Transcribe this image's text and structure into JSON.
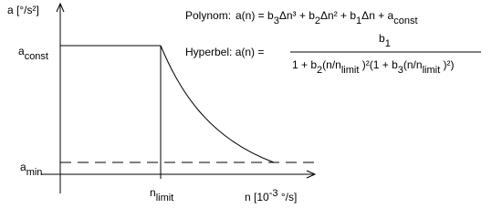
{
  "y_axis_label": "a [°/s²]",
  "x_axis_label": [
    {
      "text": "n [10"
    },
    {
      "sup": "-3"
    },
    {
      "text": " °/s]"
    }
  ],
  "y_labels": {
    "a_const": [
      {
        "text": "a"
      },
      {
        "sub": "const"
      }
    ],
    "a_min": [
      {
        "text": "a"
      },
      {
        "sub": "min"
      }
    ]
  },
  "x_labels": {
    "n_limit": [
      {
        "text": "n"
      },
      {
        "sub": "limit"
      }
    ]
  },
  "formulas": {
    "polynom": {
      "label": "Polynom:",
      "parts": [
        {
          "text": "a(n) = b"
        },
        {
          "sub": "3"
        },
        {
          "text": "Δn³ + b"
        },
        {
          "sub": "2"
        },
        {
          "text": "Δn² + b"
        },
        {
          "sub": "1"
        },
        {
          "text": "Δn + a"
        },
        {
          "sub": "const"
        }
      ]
    },
    "hyperbel": {
      "label": "Hyperbel: a(n) =",
      "numerator": [
        {
          "text": "b"
        },
        {
          "sub": "1"
        }
      ],
      "denominator": [
        {
          "text": "1 + b"
        },
        {
          "sub": "2"
        },
        {
          "text": "(n/n"
        },
        {
          "sub": "limit"
        },
        {
          "text": " )²(1 + b"
        },
        {
          "sub": "3"
        },
        {
          "text": "(n/n"
        },
        {
          "sub": "limit"
        },
        {
          "text": " )²)"
        }
      ]
    }
  }
}
